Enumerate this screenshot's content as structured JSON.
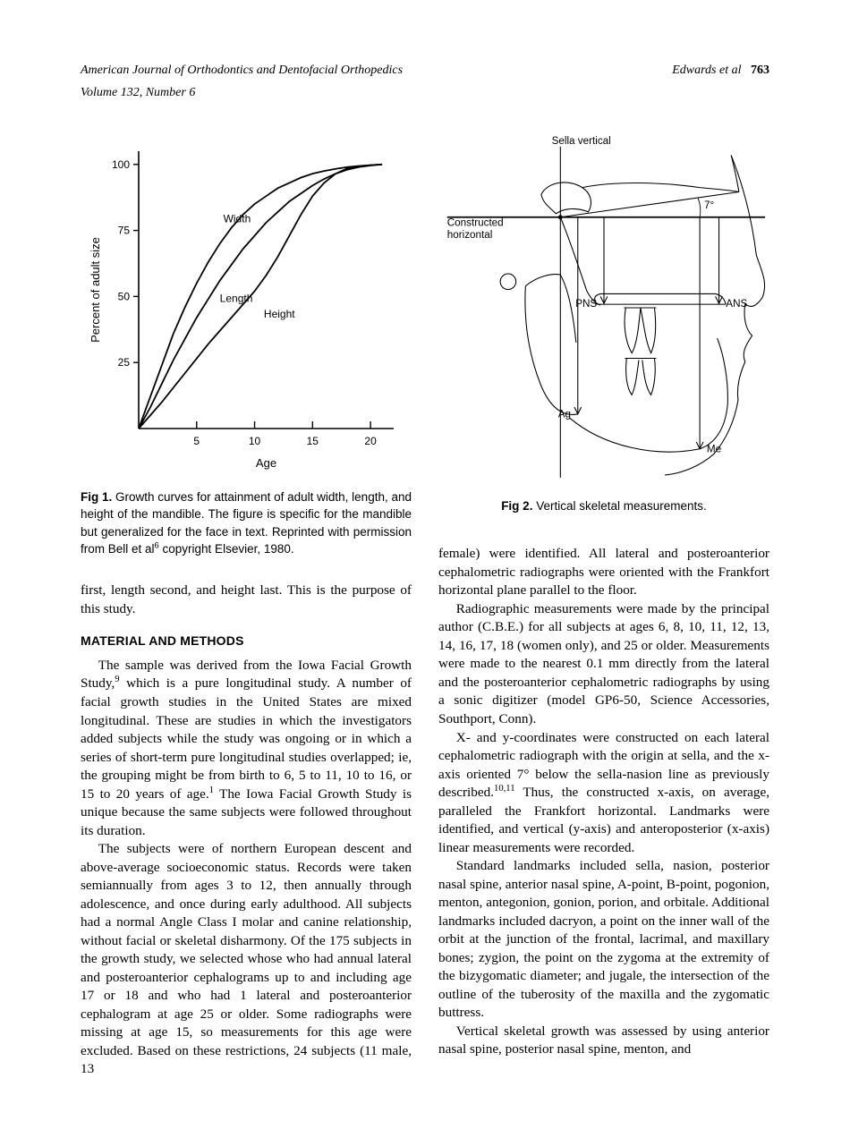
{
  "header": {
    "journal": "American Journal of Orthodontics and Dentofacial Orthopedics",
    "volume": "Volume 132, Number 6",
    "authors": "Edwards et al",
    "page": "763"
  },
  "fig1": {
    "label": "Fig 1.",
    "caption": "Growth curves for attainment of adult width, length, and height of the mandible. The figure is specific for the mandible but generalized for the face in text. Reprinted with permission from Bell et al",
    "caption_sup": "6",
    "caption_tail": " copyright Elsevier, 1980.",
    "chart": {
      "xlabel": "Age",
      "ylabel": "Percent of adult size",
      "xlim": [
        0,
        22
      ],
      "ylim": [
        0,
        105
      ],
      "xticks": [
        5,
        10,
        15,
        20
      ],
      "yticks": [
        25,
        50,
        75,
        100
      ],
      "axis_color": "#000000",
      "background_color": "#ffffff",
      "label_fontsize": 13,
      "tick_fontsize": 12,
      "line_width": 1.8,
      "curve_labels": {
        "width": "Width",
        "length": "Length",
        "height": "Height"
      },
      "curves": {
        "width": [
          [
            0,
            0
          ],
          [
            1,
            12
          ],
          [
            2,
            24
          ],
          [
            3,
            36
          ],
          [
            4,
            46
          ],
          [
            5,
            55
          ],
          [
            6,
            63
          ],
          [
            7,
            70
          ],
          [
            8,
            76
          ],
          [
            9,
            81
          ],
          [
            10,
            85
          ],
          [
            11,
            88
          ],
          [
            12,
            91
          ],
          [
            13,
            93
          ],
          [
            14,
            95
          ],
          [
            15,
            96.5
          ],
          [
            16,
            97.5
          ],
          [
            17,
            98.3
          ],
          [
            18,
            99
          ],
          [
            19,
            99.4
          ],
          [
            20,
            99.7
          ],
          [
            21,
            100
          ]
        ],
        "length": [
          [
            0,
            0
          ],
          [
            1,
            8
          ],
          [
            2,
            17
          ],
          [
            3,
            26
          ],
          [
            4,
            34
          ],
          [
            5,
            42
          ],
          [
            6,
            49
          ],
          [
            7,
            56
          ],
          [
            8,
            62
          ],
          [
            9,
            68
          ],
          [
            10,
            73
          ],
          [
            11,
            78
          ],
          [
            12,
            82
          ],
          [
            13,
            86
          ],
          [
            14,
            89
          ],
          [
            15,
            92
          ],
          [
            16,
            94.5
          ],
          [
            17,
            96.5
          ],
          [
            18,
            98
          ],
          [
            19,
            99
          ],
          [
            20,
            99.6
          ],
          [
            21,
            100
          ]
        ],
        "height": [
          [
            0,
            0
          ],
          [
            1,
            5
          ],
          [
            2,
            10
          ],
          [
            3,
            15.5
          ],
          [
            4,
            21
          ],
          [
            5,
            26.5
          ],
          [
            6,
            32
          ],
          [
            7,
            37
          ],
          [
            8,
            42
          ],
          [
            9,
            47
          ],
          [
            10,
            52
          ],
          [
            11,
            58
          ],
          [
            12,
            65
          ],
          [
            13,
            73
          ],
          [
            14,
            81
          ],
          [
            15,
            88
          ],
          [
            16,
            93
          ],
          [
            17,
            96.5
          ],
          [
            18,
            98.5
          ],
          [
            19,
            99.3
          ],
          [
            20,
            99.7
          ],
          [
            21,
            100
          ]
        ]
      }
    }
  },
  "fig2": {
    "label": "Fig 2.",
    "caption": "Vertical skeletal measurements.",
    "diagram": {
      "stroke": "#000000",
      "stroke_width": 1.1,
      "background": "#ffffff",
      "font_size": 12,
      "angle_label": "7°",
      "labels": {
        "sella_vertical": "Sella vertical",
        "constructed_horizontal": "Constructed\nhorizontal",
        "pns": "PNS",
        "ans": "ANS",
        "ag": "Ag",
        "me": "Me"
      }
    }
  },
  "sections": {
    "material_methods": "MATERIAL AND METHODS"
  },
  "paragraphs": {
    "intro_tail": "first, length second, and height last. This is the purpose of this study.",
    "mm_p1a": "The sample was derived from the Iowa Facial Growth Study,",
    "mm_p1a_sup": "9",
    "mm_p1b": " which is a pure longitudinal study. A number of facial growth studies in the United States are mixed longitudinal. These are studies in which the investigators added subjects while the study was ongoing or in which a series of short-term pure longitudinal studies overlapped; ie, the grouping might be from birth to 6, 5 to 11, 10 to 16, or 15 to 20 years of age.",
    "mm_p1b_sup": "1",
    "mm_p1c": " The Iowa Facial Growth Study is unique because the same subjects were followed throughout its duration.",
    "mm_p2": "The subjects were of northern European descent and above-average socioeconomic status. Records were taken semiannually from ages 3 to 12, then annually through adolescence, and once during early adulthood. All subjects had a normal Angle Class I molar and canine relationship, without facial or skeletal disharmony. Of the 175 subjects in the growth study, we selected whose who had annual lateral and posteroanterior cephalograms up to and including age 17 or 18 and who had 1 lateral and posteroanterior cephalogram at age 25 or older. Some radiographs were missing at age 15, so measurements for this age were excluded. Based on these restrictions, 24 subjects (11 male, 13",
    "right_p1": "female) were identified. All lateral and posteroanterior cephalometric radiographs were oriented with the Frankfort horizontal plane parallel to the floor.",
    "right_p2": "Radiographic measurements were made by the principal author (C.B.E.) for all subjects at ages 6, 8, 10, 11, 12, 13, 14, 16, 17, 18 (women only), and 25 or older. Measurements were made to the nearest 0.1 mm directly from the lateral and the posteroanterior cephalometric radiographs by using a sonic digitizer (model GP6-50, Science Accessories, Southport, Conn).",
    "right_p3a": "X- and y-coordinates were constructed on each lateral cephalometric radiograph with the origin at sella, and the x-axis oriented 7° below the sella-nasion line as previously described.",
    "right_p3a_sup": "10,11",
    "right_p3b": " Thus, the constructed x-axis, on average, paralleled the Frankfort horizontal. Landmarks were identified, and vertical (y-axis) and anteroposterior (x-axis) linear measurements were recorded.",
    "right_p4": "Standard landmarks included sella, nasion, posterior nasal spine, anterior nasal spine, A-point, B-point, pogonion, menton, antegonion, gonion, porion, and orbitale. Additional landmarks included dacryon, a point on the inner wall of the orbit at the junction of the frontal, lacrimal, and maxillary bones; zygion, the point on the zygoma at the extremity of the bizygomatic diameter; and jugale, the intersection of the outline of the tuberosity of the maxilla and the zygomatic buttress.",
    "right_p5": "Vertical skeletal growth was assessed by using anterior nasal spine, posterior nasal spine, menton, and"
  }
}
